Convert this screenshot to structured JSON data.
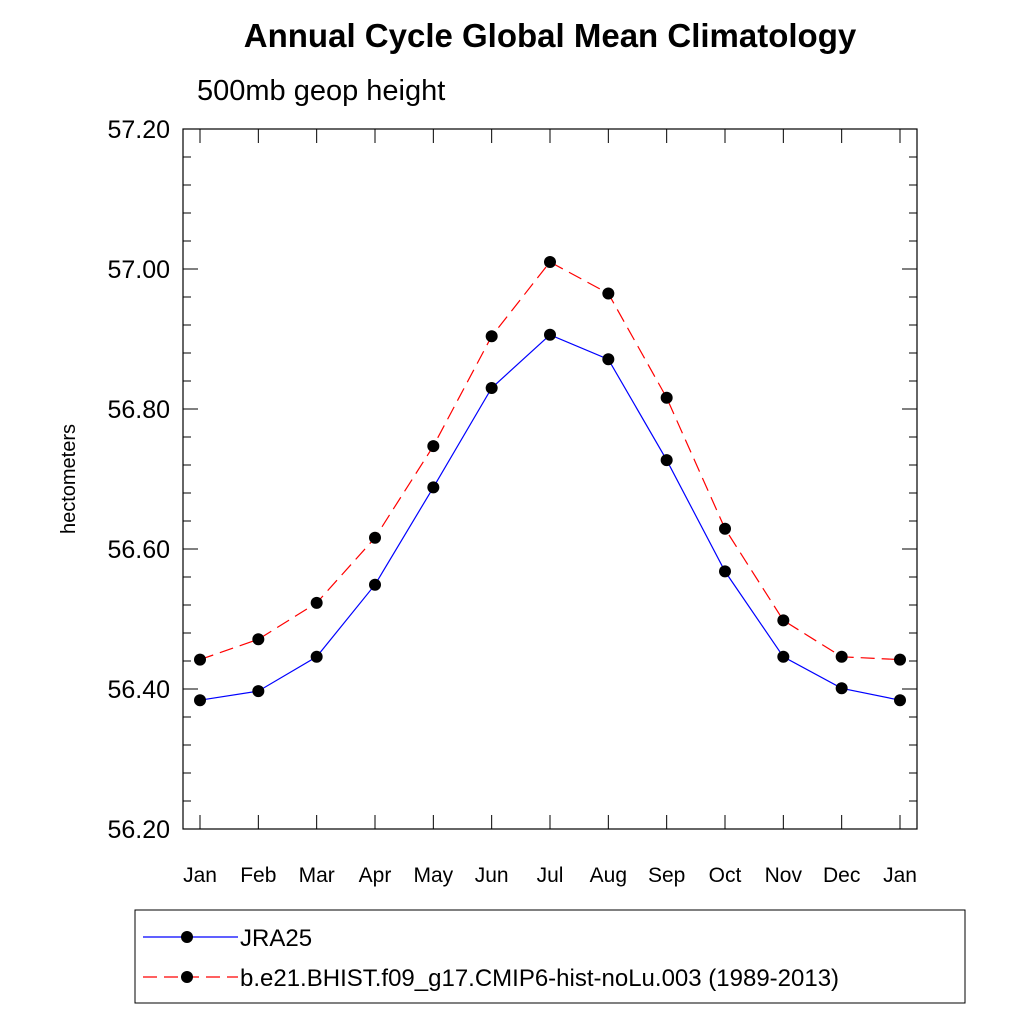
{
  "chart_data": {
    "type": "line",
    "title": "Annual Cycle Global Mean Climatology",
    "subtitle": "500mb geop height",
    "xlabel": "",
    "ylabel": "hectometers",
    "categories": [
      "Jan",
      "Feb",
      "Mar",
      "Apr",
      "May",
      "Jun",
      "Jul",
      "Aug",
      "Sep",
      "Oct",
      "Nov",
      "Dec",
      "Jan"
    ],
    "yticks": [
      "56.20",
      "56.40",
      "56.60",
      "56.80",
      "57.00",
      "57.20"
    ],
    "ylim": [
      56.2,
      57.2
    ],
    "grid": false,
    "legend_position": "bottom",
    "series": [
      {
        "name": "JRA25",
        "color": "#0000ff",
        "line_style": "solid",
        "marker": "filled-circle",
        "values": [
          56.384,
          56.397,
          56.446,
          56.549,
          56.688,
          56.83,
          56.906,
          56.871,
          56.727,
          56.568,
          56.446,
          56.401,
          56.384
        ]
      },
      {
        "name": "b.e21.BHIST.f09_g17.CMIP6-hist-noLu.003 (1989-2013)",
        "color": "#ff0000",
        "line_style": "dashed",
        "marker": "filled-circle",
        "values": [
          56.442,
          56.471,
          56.523,
          56.616,
          56.747,
          56.904,
          57.01,
          56.965,
          56.816,
          56.629,
          56.498,
          56.446,
          56.442
        ]
      }
    ]
  }
}
